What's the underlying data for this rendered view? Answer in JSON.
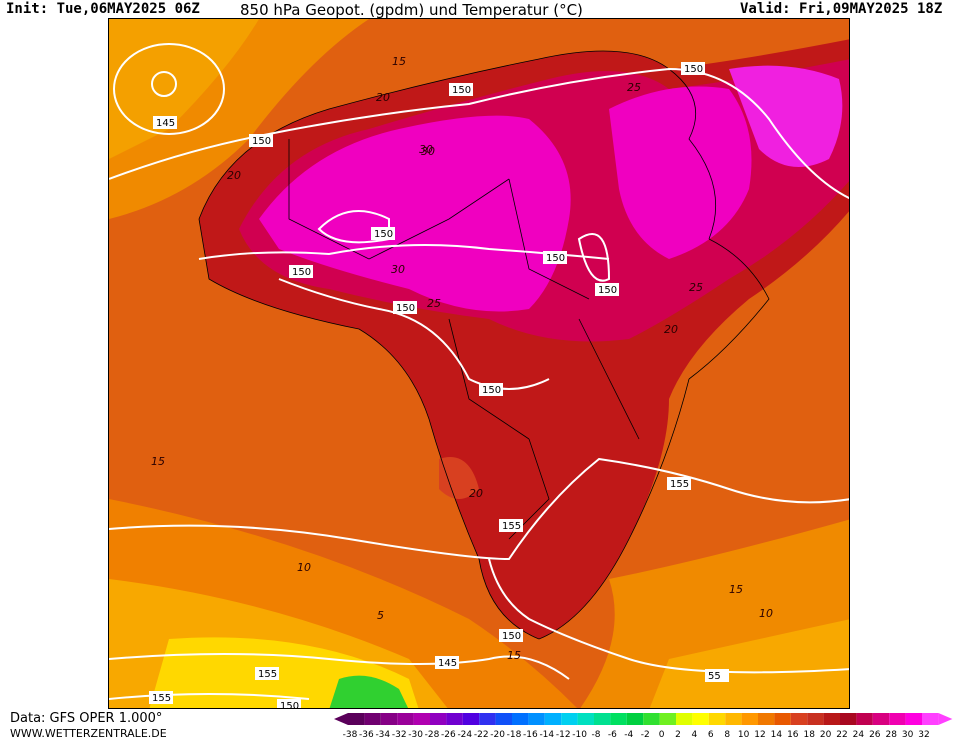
{
  "header": {
    "init": "Init: Tue,06MAY2025 06Z",
    "title": "850 hPa Geopot. (gpdm) und Temperatur (°C)",
    "valid": "Valid: Fri,09MAY2025 18Z"
  },
  "footer": {
    "data_source": "Data: GFS OPER 1.000°",
    "website": "WWW.WETTERZENTRALE.DE"
  },
  "legend": {
    "ticks": [
      "-38",
      "-36",
      "-34",
      "-32",
      "-30",
      "-28",
      "-26",
      "-24",
      "-22",
      "-20",
      "-18",
      "-16",
      "-14",
      "-12",
      "-10",
      "-8",
      "-6",
      "-4",
      "-2",
      "0",
      "2",
      "4",
      "6",
      "8",
      "10",
      "12",
      "14",
      "16",
      "18",
      "20",
      "22",
      "24",
      "26",
      "28",
      "30",
      "32"
    ],
    "colors": [
      "#5a005a",
      "#700070",
      "#860086",
      "#9a009a",
      "#b000b0",
      "#9000c0",
      "#7000d0",
      "#5000e0",
      "#3030f0",
      "#1050f8",
      "#0070ff",
      "#0090ff",
      "#00b0ff",
      "#00d0f0",
      "#00e0c0",
      "#00e090",
      "#00e060",
      "#00d040",
      "#30e030",
      "#70f020",
      "#e0ff00",
      "#ffff00",
      "#ffd800",
      "#ffb800",
      "#ff9800",
      "#f07800",
      "#e85800",
      "#d84020",
      "#c83020",
      "#b81818",
      "#a80820",
      "#c00050",
      "#d80080",
      "#f000b0",
      "#ff00e0",
      "#ff40ff"
    ]
  },
  "map": {
    "geopotential_labels": [
      "145",
      "150",
      "150",
      "150",
      "150",
      "150",
      "150",
      "150",
      "150",
      "150",
      "155",
      "155",
      "155",
      "150",
      "145",
      "155",
      "55",
      "150"
    ],
    "temperature_labels": [
      "15",
      "20",
      "20",
      "30",
      "30",
      "25",
      "25",
      "20",
      "20",
      "15",
      "10",
      "5",
      "15",
      "15",
      "10",
      "25",
      "30"
    ]
  }
}
